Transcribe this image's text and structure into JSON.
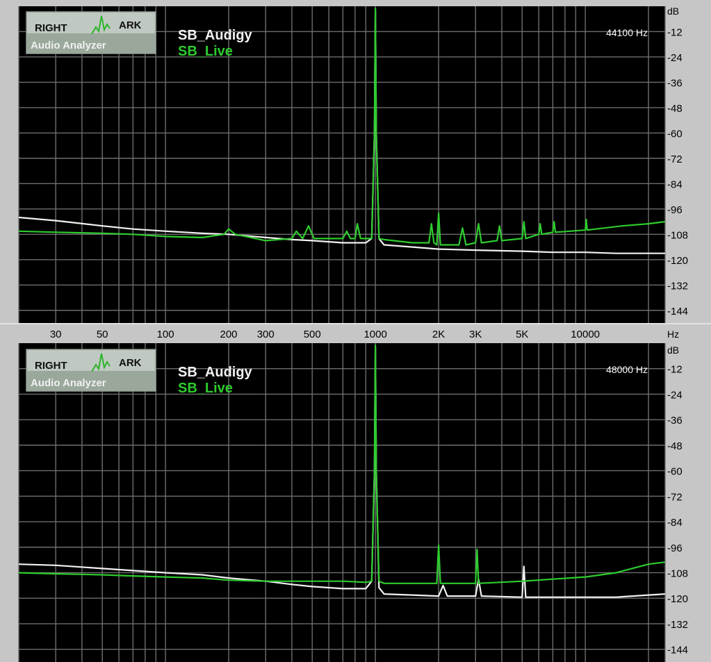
{
  "colors": {
    "panel_background": "#000000",
    "grid": "#6e6e6e",
    "axis_strip": "#c6c6c6",
    "series_audigy": "#f2f2f2",
    "series_live": "#2ecc2e"
  },
  "logo": {
    "line1_left": "RIGHT",
    "line1_right": "ARK",
    "line2": "Audio Analyzer"
  },
  "legend": [
    "SB_Audigy",
    "SB_Live"
  ],
  "x_unit": "Hz",
  "y_unit": "dB",
  "x_tick_labels": [
    "30",
    "50",
    "100",
    "200",
    "300",
    "500",
    "1000",
    "2K",
    "3K",
    "5K",
    "10000"
  ],
  "y_tick_labels": [
    "-12",
    "-24",
    "-36",
    "-48",
    "-60",
    "-72",
    "-84",
    "-96",
    "-108",
    "-120",
    "-132",
    "-144"
  ],
  "chart_data": [
    {
      "type": "line",
      "panel": "top",
      "annotation": "44100 Hz",
      "xscale": "log",
      "xlim": [
        20,
        24000
      ],
      "ylim": [
        -150,
        0
      ],
      "grid": true,
      "legend_position": "top-left",
      "xlabel": "Hz",
      "ylabel": "dB",
      "series": [
        {
          "name": "SB_Audigy",
          "color": "#f2f2f2",
          "points": [
            [
              20,
              -100
            ],
            [
              30,
              -101.5
            ],
            [
              50,
              -104
            ],
            [
              70,
              -105.5
            ],
            [
              100,
              -106.5
            ],
            [
              150,
              -107.5
            ],
            [
              200,
              -108
            ],
            [
              300,
              -109.5
            ],
            [
              400,
              -110.5
            ],
            [
              500,
              -111
            ],
            [
              700,
              -112
            ],
            [
              900,
              -112
            ],
            [
              960,
              -110
            ],
            [
              990,
              -60
            ],
            [
              1000,
              -2
            ],
            [
              1010,
              -60
            ],
            [
              1040,
              -110
            ],
            [
              1100,
              -113
            ],
            [
              1500,
              -114
            ],
            [
              2000,
              -115
            ],
            [
              3000,
              -115.5
            ],
            [
              5000,
              -116
            ],
            [
              7000,
              -116.5
            ],
            [
              10000,
              -116.5
            ],
            [
              14000,
              -117
            ],
            [
              20000,
              -117
            ],
            [
              24000,
              -117
            ]
          ]
        },
        {
          "name": "SB_Live",
          "color": "#2ecc2e",
          "points": [
            [
              20,
              -106.5
            ],
            [
              30,
              -107
            ],
            [
              50,
              -107.5
            ],
            [
              70,
              -108
            ],
            [
              100,
              -109
            ],
            [
              150,
              -109.5
            ],
            [
              190,
              -108
            ],
            [
              200,
              -105.5
            ],
            [
              215,
              -108
            ],
            [
              300,
              -111
            ],
            [
              400,
              -110
            ],
            [
              420,
              -106.5
            ],
            [
              450,
              -110
            ],
            [
              480,
              -104
            ],
            [
              510,
              -110
            ],
            [
              700,
              -110
            ],
            [
              730,
              -106.5
            ],
            [
              760,
              -110
            ],
            [
              800,
              -110
            ],
            [
              820,
              -103
            ],
            [
              850,
              -110
            ],
            [
              960,
              -110
            ],
            [
              990,
              -60
            ],
            [
              1000,
              -1
            ],
            [
              1010,
              -60
            ],
            [
              1040,
              -110
            ],
            [
              1100,
              -110.5
            ],
            [
              1500,
              -112
            ],
            [
              1800,
              -112
            ],
            [
              1850,
              -103
            ],
            [
              1900,
              -112
            ],
            [
              1960,
              -113
            ],
            [
              2000,
              -98
            ],
            [
              2040,
              -113
            ],
            [
              2500,
              -113
            ],
            [
              2600,
              -105
            ],
            [
              2700,
              -113
            ],
            [
              3000,
              -112
            ],
            [
              3100,
              -103
            ],
            [
              3200,
              -112
            ],
            [
              3800,
              -111
            ],
            [
              3900,
              -104
            ],
            [
              4000,
              -111
            ],
            [
              5000,
              -110
            ],
            [
              5100,
              -102
            ],
            [
              5200,
              -110
            ],
            [
              6000,
              -108
            ],
            [
              6100,
              -103
            ],
            [
              6200,
              -108
            ],
            [
              7000,
              -107
            ],
            [
              7100,
              -102
            ],
            [
              7200,
              -107
            ],
            [
              10000,
              -106
            ],
            [
              10100,
              -101
            ],
            [
              10200,
              -106
            ],
            [
              15000,
              -104
            ],
            [
              20000,
              -103
            ],
            [
              24000,
              -102
            ]
          ]
        }
      ]
    },
    {
      "type": "line",
      "panel": "bottom",
      "annotation": "48000 Hz",
      "xscale": "log",
      "xlim": [
        20,
        24000
      ],
      "ylim": [
        -150,
        0
      ],
      "grid": true,
      "legend_position": "top-left",
      "xlabel": "Hz",
      "ylabel": "dB",
      "series": [
        {
          "name": "SB_Audigy",
          "color": "#f2f2f2",
          "points": [
            [
              20,
              -104
            ],
            [
              30,
              -104.5
            ],
            [
              50,
              -106
            ],
            [
              70,
              -107
            ],
            [
              100,
              -108
            ],
            [
              150,
              -109
            ],
            [
              200,
              -110.5
            ],
            [
              300,
              -112
            ],
            [
              400,
              -113.5
            ],
            [
              500,
              -114.5
            ],
            [
              700,
              -115.5
            ],
            [
              900,
              -115.5
            ],
            [
              960,
              -112
            ],
            [
              990,
              -60
            ],
            [
              1000,
              -2
            ],
            [
              1010,
              -60
            ],
            [
              1040,
              -115
            ],
            [
              1100,
              -118
            ],
            [
              1500,
              -118.5
            ],
            [
              2000,
              -119
            ],
            [
              2100,
              -114
            ],
            [
              2200,
              -119
            ],
            [
              3000,
              -119
            ],
            [
              3100,
              -111
            ],
            [
              3200,
              -119
            ],
            [
              5000,
              -119.5
            ],
            [
              5100,
              -105
            ],
            [
              5200,
              -119.5
            ],
            [
              7000,
              -119.5
            ],
            [
              10000,
              -119.5
            ],
            [
              14000,
              -119.5
            ],
            [
              20000,
              -118.5
            ],
            [
              24000,
              -118
            ]
          ]
        },
        {
          "name": "SB_Live",
          "color": "#2ecc2e",
          "points": [
            [
              20,
              -108
            ],
            [
              30,
              -108.5
            ],
            [
              50,
              -109
            ],
            [
              70,
              -109.5
            ],
            [
              100,
              -110
            ],
            [
              150,
              -110.5
            ],
            [
              200,
              -111.5
            ],
            [
              300,
              -112
            ],
            [
              400,
              -112
            ],
            [
              500,
              -112
            ],
            [
              700,
              -112
            ],
            [
              900,
              -112.5
            ],
            [
              960,
              -112
            ],
            [
              990,
              -60
            ],
            [
              1000,
              -1
            ],
            [
              1010,
              -60
            ],
            [
              1040,
              -112
            ],
            [
              1100,
              -113
            ],
            [
              1500,
              -113
            ],
            [
              1960,
              -113
            ],
            [
              2000,
              -95
            ],
            [
              2040,
              -113
            ],
            [
              3000,
              -113
            ],
            [
              3050,
              -97
            ],
            [
              3100,
              -113
            ],
            [
              5000,
              -112
            ],
            [
              7000,
              -111
            ],
            [
              10000,
              -110
            ],
            [
              14000,
              -108
            ],
            [
              20000,
              -104
            ],
            [
              24000,
              -103
            ]
          ]
        }
      ]
    }
  ]
}
